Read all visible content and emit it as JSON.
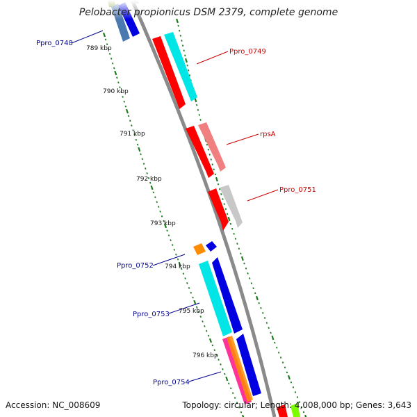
{
  "title": "Pelobacter propionicus DSM 2379, complete genome",
  "footer": {
    "accession": "Accession: NC_008609",
    "summary": "Topology: circular; Length: 4,008,000 bp; Genes: 3,643"
  },
  "ticks": [
    "789 kbp",
    "790 kbp",
    "791 kbp",
    "792 kbp",
    "793 kbp",
    "794 kbp",
    "795 kbp",
    "796 kbp"
  ],
  "colors": {
    "backbone": "#8a8a8a",
    "tick": "#1d7a1d",
    "minus_strand_label": "#00008b",
    "plus_strand_label": "#cc0000"
  },
  "genes": [
    {
      "name": "Ppro_0748",
      "strand": "minus",
      "color": "#4a78b0"
    },
    {
      "name": "Ppro_0749",
      "strand": "plus",
      "color": "#00e5e5"
    },
    {
      "name": "rpsA",
      "strand": "plus",
      "color": "#f08080"
    },
    {
      "name": "Ppro_0751",
      "strand": "plus",
      "color": "#c8c8c8"
    },
    {
      "name": "Ppro_0752",
      "strand": "minus",
      "color": "#ff8c00"
    },
    {
      "name": "Ppro_0753",
      "strand": "minus",
      "color": "#00e5e5"
    },
    {
      "name": "Ppro_0754",
      "strand": "minus",
      "color": "#ff3399"
    }
  ]
}
